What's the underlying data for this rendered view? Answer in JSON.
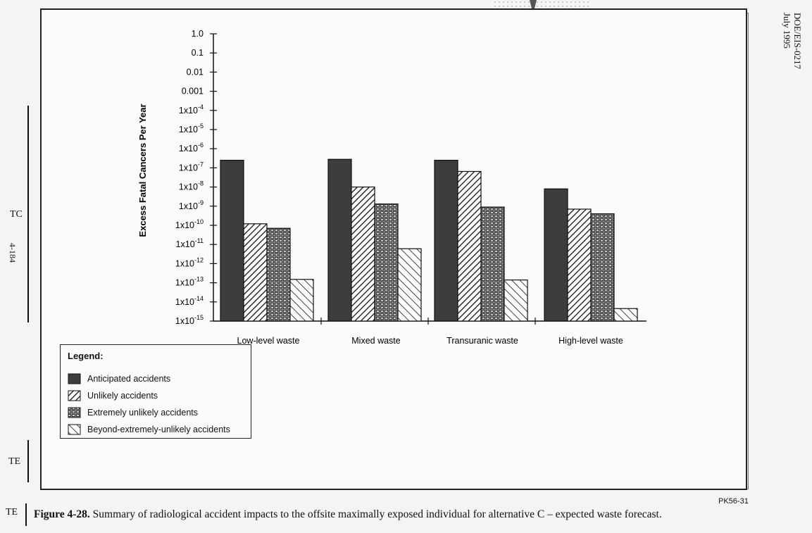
{
  "header": {
    "doc_id_line1": "DOE/EIS-0217",
    "doc_id_line2": "July 1995"
  },
  "margin": {
    "tc_label": "TC",
    "te_label": "TE",
    "page_number": "4-184"
  },
  "figure_code": "PK56-31",
  "caption": {
    "label": "Figure 4-28.",
    "text": "Summary of radiological accident impacts to the offsite maximally exposed individual for alternative C – expected waste forecast.",
    "margin_tag": "TE"
  },
  "chart_data": {
    "type": "bar",
    "scale": "log",
    "ylabel": "Excess Fatal Cancers Per Year",
    "ylim": [
      1e-15,
      1.0
    ],
    "y_ticks": [
      {
        "value": 1.0,
        "label": "1.0"
      },
      {
        "value": 0.1,
        "label": "0.1"
      },
      {
        "value": 0.01,
        "label": "0.01"
      },
      {
        "value": 0.001,
        "label": "0.001"
      },
      {
        "value": 0.0001,
        "label": "1x10",
        "exp": "-4"
      },
      {
        "value": 1e-05,
        "label": "1x10",
        "exp": "-5"
      },
      {
        "value": 1e-06,
        "label": "1x10",
        "exp": "-6"
      },
      {
        "value": 1e-07,
        "label": "1x10",
        "exp": "-7"
      },
      {
        "value": 1e-08,
        "label": "1x10",
        "exp": "-8"
      },
      {
        "value": 1e-09,
        "label": "1x10",
        "exp": "-9"
      },
      {
        "value": 1e-10,
        "label": "1x10",
        "exp": "-10"
      },
      {
        "value": 1e-11,
        "label": "1x10",
        "exp": "-11"
      },
      {
        "value": 1e-12,
        "label": "1x10",
        "exp": "-12"
      },
      {
        "value": 1e-13,
        "label": "1x10",
        "exp": "-13"
      },
      {
        "value": 1e-14,
        "label": "1x10",
        "exp": "-14"
      },
      {
        "value": 1e-15,
        "label": "1x10",
        "exp": "-15"
      }
    ],
    "categories": [
      "Low-level waste",
      "Mixed waste",
      "Transuranic waste",
      "High-level waste"
    ],
    "series": [
      {
        "name": "Anticipated accidents",
        "pattern": "solid",
        "values": [
          2.5e-07,
          2.8e-07,
          2.5e-07,
          8e-09
        ]
      },
      {
        "name": "Unlikely accidents",
        "pattern": "hatch-dense",
        "values": [
          1.2e-10,
          1e-08,
          6.5e-08,
          7e-10
        ]
      },
      {
        "name": "Extremely unlikely accidents",
        "pattern": "brick",
        "values": [
          7e-11,
          1.3e-09,
          9e-10,
          4e-10
        ]
      },
      {
        "name": "Beyond-extremely-unlikely accidents",
        "pattern": "hatch-wide",
        "values": [
          1.5e-13,
          6e-12,
          1.4e-13,
          4.5e-15
        ]
      }
    ],
    "legend": {
      "title": "Legend:",
      "placement": "bottom-left"
    }
  }
}
